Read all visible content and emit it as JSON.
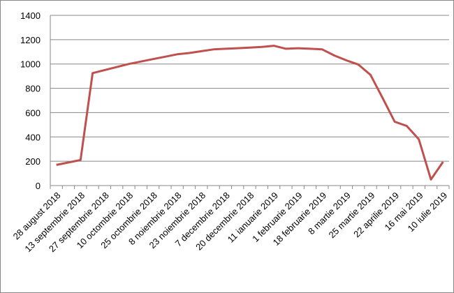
{
  "chart_data": {
    "type": "line",
    "categories": [
      "28 august 2018",
      null,
      "13 septembrie 2018",
      null,
      "27 septembrie 2018",
      null,
      "10 octombrie 2018",
      null,
      "25 octombrie 2018",
      null,
      "8 noiembrie 2018",
      null,
      "23 noiembrie 2018",
      null,
      "7 decembrie 2018",
      null,
      "20 decembrie 2018",
      null,
      "11 ianuarie 2019",
      null,
      "1 februarie 2019",
      null,
      "18 februarie 2019",
      null,
      "8 martie 2019",
      null,
      "25 martie 2019",
      null,
      "22 aprilie 2019",
      null,
      "16 mai 2019",
      null,
      "10 iulie 2019"
    ],
    "series": [
      {
        "color": "#c0504d",
        "values": [
          170,
          190,
          210,
          925,
          950,
          975,
          1000,
          1020,
          1040,
          1060,
          1080,
          1090,
          1105,
          1120,
          1125,
          1130,
          1135,
          1140,
          1150,
          1125,
          1130,
          1125,
          1120,
          1070,
          1030,
          995,
          910,
          720,
          525,
          490,
          380,
          50,
          195
        ]
      }
    ],
    "ylim": [
      0,
      1400
    ],
    "yticks": [
      0,
      200,
      400,
      600,
      800,
      1000,
      1200,
      1400
    ],
    "grid": true
  }
}
